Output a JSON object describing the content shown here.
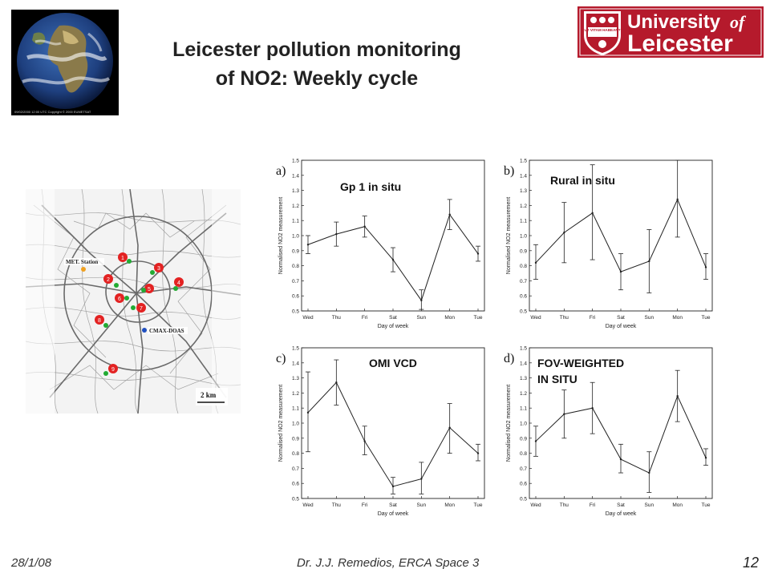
{
  "slide": {
    "title_line1": "Leicester pollution monitoring",
    "title_line2": "of NO2: Weekly cycle",
    "footer_date": "28/1/08",
    "footer_author": "Dr. J.J. Remedios, ERCA Space 3",
    "page_number": "12"
  },
  "logo": {
    "line1": "University",
    "of": "of",
    "line2": "Leicester",
    "motto": "UT VITAM HABEANT"
  },
  "earth_caption": "09/02/2000 12:00 UTC Copyright © 2000 EUMETSAT",
  "map": {
    "met_station_label": "MET. Station",
    "cmax_label": "CMAX-DOAS",
    "scale_label": "2 km",
    "site_numbers": [
      "1",
      "2",
      "3",
      "4",
      "5",
      "6",
      "7",
      "8",
      "9"
    ]
  },
  "chart_data": [
    {
      "type": "line",
      "panel_label": "a)",
      "annotation": "Gp 1 in situ",
      "xlabel": "Day of week",
      "ylabel": "Normalised NO2 measurement",
      "categories": [
        "Wed",
        "Thu",
        "Fri",
        "Sat",
        "Sun",
        "Mon",
        "Tue"
      ],
      "yticks": [
        "0.5",
        "0.6",
        "0.7",
        "0.8",
        "0.9",
        "1.0",
        "1.1",
        "1.2",
        "1.3",
        "1.4",
        "1.5"
      ],
      "ylim": [
        0.5,
        1.5
      ],
      "values": [
        0.94,
        1.01,
        1.06,
        0.84,
        0.57,
        1.14,
        0.88
      ],
      "err_low": [
        0.88,
        0.93,
        0.99,
        0.76,
        0.51,
        1.04,
        0.83
      ],
      "err_high": [
        1.0,
        1.09,
        1.13,
        0.92,
        0.64,
        1.24,
        0.93
      ]
    },
    {
      "type": "line",
      "panel_label": "b)",
      "annotation": "Rural in situ",
      "xlabel": "Day of week",
      "ylabel": "Normalised NO2 measurement",
      "categories": [
        "Wed",
        "Thu",
        "Fri",
        "Sat",
        "Sun",
        "Mon",
        "Tue"
      ],
      "yticks": [
        "0.5",
        "0.6",
        "0.7",
        "0.8",
        "0.9",
        "1.0",
        "1.1",
        "1.2",
        "1.3",
        "1.4",
        "1.5"
      ],
      "ylim": [
        0.5,
        1.5
      ],
      "values": [
        0.82,
        1.02,
        1.15,
        0.76,
        0.83,
        1.24,
        0.79
      ],
      "err_low": [
        0.71,
        0.82,
        0.84,
        0.64,
        0.62,
        0.99,
        0.71
      ],
      "err_high": [
        0.94,
        1.22,
        1.47,
        0.88,
        1.04,
        1.5,
        0.88
      ]
    },
    {
      "type": "line",
      "panel_label": "c)",
      "annotation": "OMI VCD",
      "xlabel": "Day of week",
      "ylabel": "Normalised NO2 measurement",
      "categories": [
        "Wed",
        "Thu",
        "Fri",
        "Sat",
        "Sun",
        "Mon",
        "Tue"
      ],
      "yticks": [
        "0.5",
        "0.6",
        "0.7",
        "0.8",
        "0.9",
        "1.0",
        "1.1",
        "1.2",
        "1.3",
        "1.4",
        "1.5"
      ],
      "ylim": [
        0.5,
        1.5
      ],
      "values": [
        1.07,
        1.27,
        0.88,
        0.58,
        0.63,
        0.97,
        0.8
      ],
      "err_low": [
        0.81,
        1.12,
        0.79,
        0.53,
        0.53,
        0.8,
        0.75
      ],
      "err_high": [
        1.34,
        1.42,
        0.98,
        0.64,
        0.74,
        1.13,
        0.86
      ]
    },
    {
      "type": "line",
      "panel_label": "d)",
      "annotation": "FOV-WEIGHTED IN SITU",
      "xlabel": "Day of week",
      "ylabel": "Normalised NO2 measurement",
      "categories": [
        "Wed",
        "Thu",
        "Fri",
        "Sat",
        "Sun",
        "Mon",
        "Tue"
      ],
      "yticks": [
        "0.5",
        "0.6",
        "0.7",
        "0.8",
        "0.9",
        "1.0",
        "1.1",
        "1.2",
        "1.3",
        "1.4",
        "1.5"
      ],
      "ylim": [
        0.5,
        1.5
      ],
      "values": [
        0.88,
        1.06,
        1.1,
        0.76,
        0.67,
        1.18,
        0.77
      ],
      "err_low": [
        0.78,
        0.9,
        0.93,
        0.67,
        0.54,
        1.01,
        0.72
      ],
      "err_high": [
        0.98,
        1.22,
        1.27,
        0.86,
        0.81,
        1.35,
        0.83
      ]
    }
  ]
}
